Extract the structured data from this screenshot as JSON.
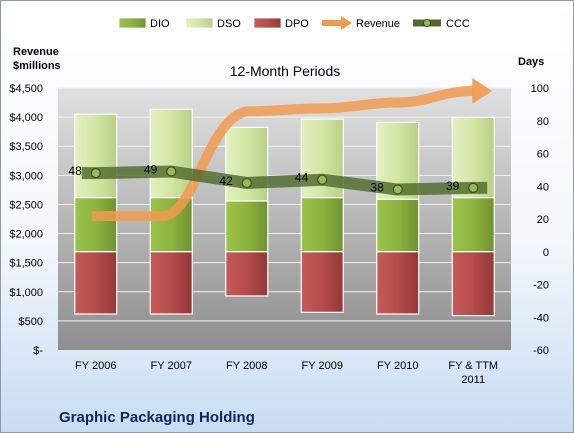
{
  "chart_data": {
    "type": "bar",
    "title": "Graphic Packaging Holding",
    "subtitle": "12-Month Periods",
    "y_left_label_line1": "Revenue",
    "y_left_label_line2": "$millions",
    "y_right_label": "Days",
    "y_left_ticks": [
      "$-",
      "$500",
      "$1,000",
      "$1,500",
      "$2,000",
      "$2,500",
      "$3,000",
      "$3,500",
      "$4,000",
      "$4,500"
    ],
    "y_left_range": [
      0,
      4500
    ],
    "y_right_ticks": [
      "-60",
      "-40",
      "-20",
      "0",
      "20",
      "40",
      "60",
      "80",
      "100"
    ],
    "y_right_range": [
      -60,
      100
    ],
    "categories": [
      [
        "FY 2006"
      ],
      [
        "FY 2007"
      ],
      [
        "FY 2008"
      ],
      [
        "FY 2009"
      ],
      [
        "FY 2010"
      ],
      [
        "FY & TTM",
        "2011"
      ]
    ],
    "legend_position": "top",
    "series": [
      {
        "name": "DIO",
        "kind": "stacked-bar-positive",
        "axis": "right",
        "color": "#8db33f",
        "values": [
          33,
          33,
          31,
          33,
          32,
          33
        ]
      },
      {
        "name": "DSO",
        "kind": "stacked-bar-positive",
        "axis": "right",
        "color": "#d2e6a4",
        "values": [
          51,
          54,
          45,
          48,
          47,
          49
        ]
      },
      {
        "name": "DPO",
        "kind": "bar-negative",
        "axis": "right",
        "color": "#b54b4b",
        "values": [
          -38,
          -38,
          -27,
          -37,
          -38,
          -39
        ]
      },
      {
        "name": "Revenue",
        "kind": "arrow-line",
        "axis": "left",
        "color": "#f19a4e",
        "values": [
          2300,
          2300,
          4100,
          4150,
          4250,
          4450
        ]
      },
      {
        "name": "CCC",
        "kind": "line-markers",
        "axis": "right",
        "color": "#4f6a2c",
        "values": [
          48,
          49,
          42,
          44,
          38,
          39
        ]
      }
    ],
    "ccc_labels": [
      "48",
      "49",
      "42",
      "44",
      "38",
      "39"
    ],
    "grid": true
  }
}
